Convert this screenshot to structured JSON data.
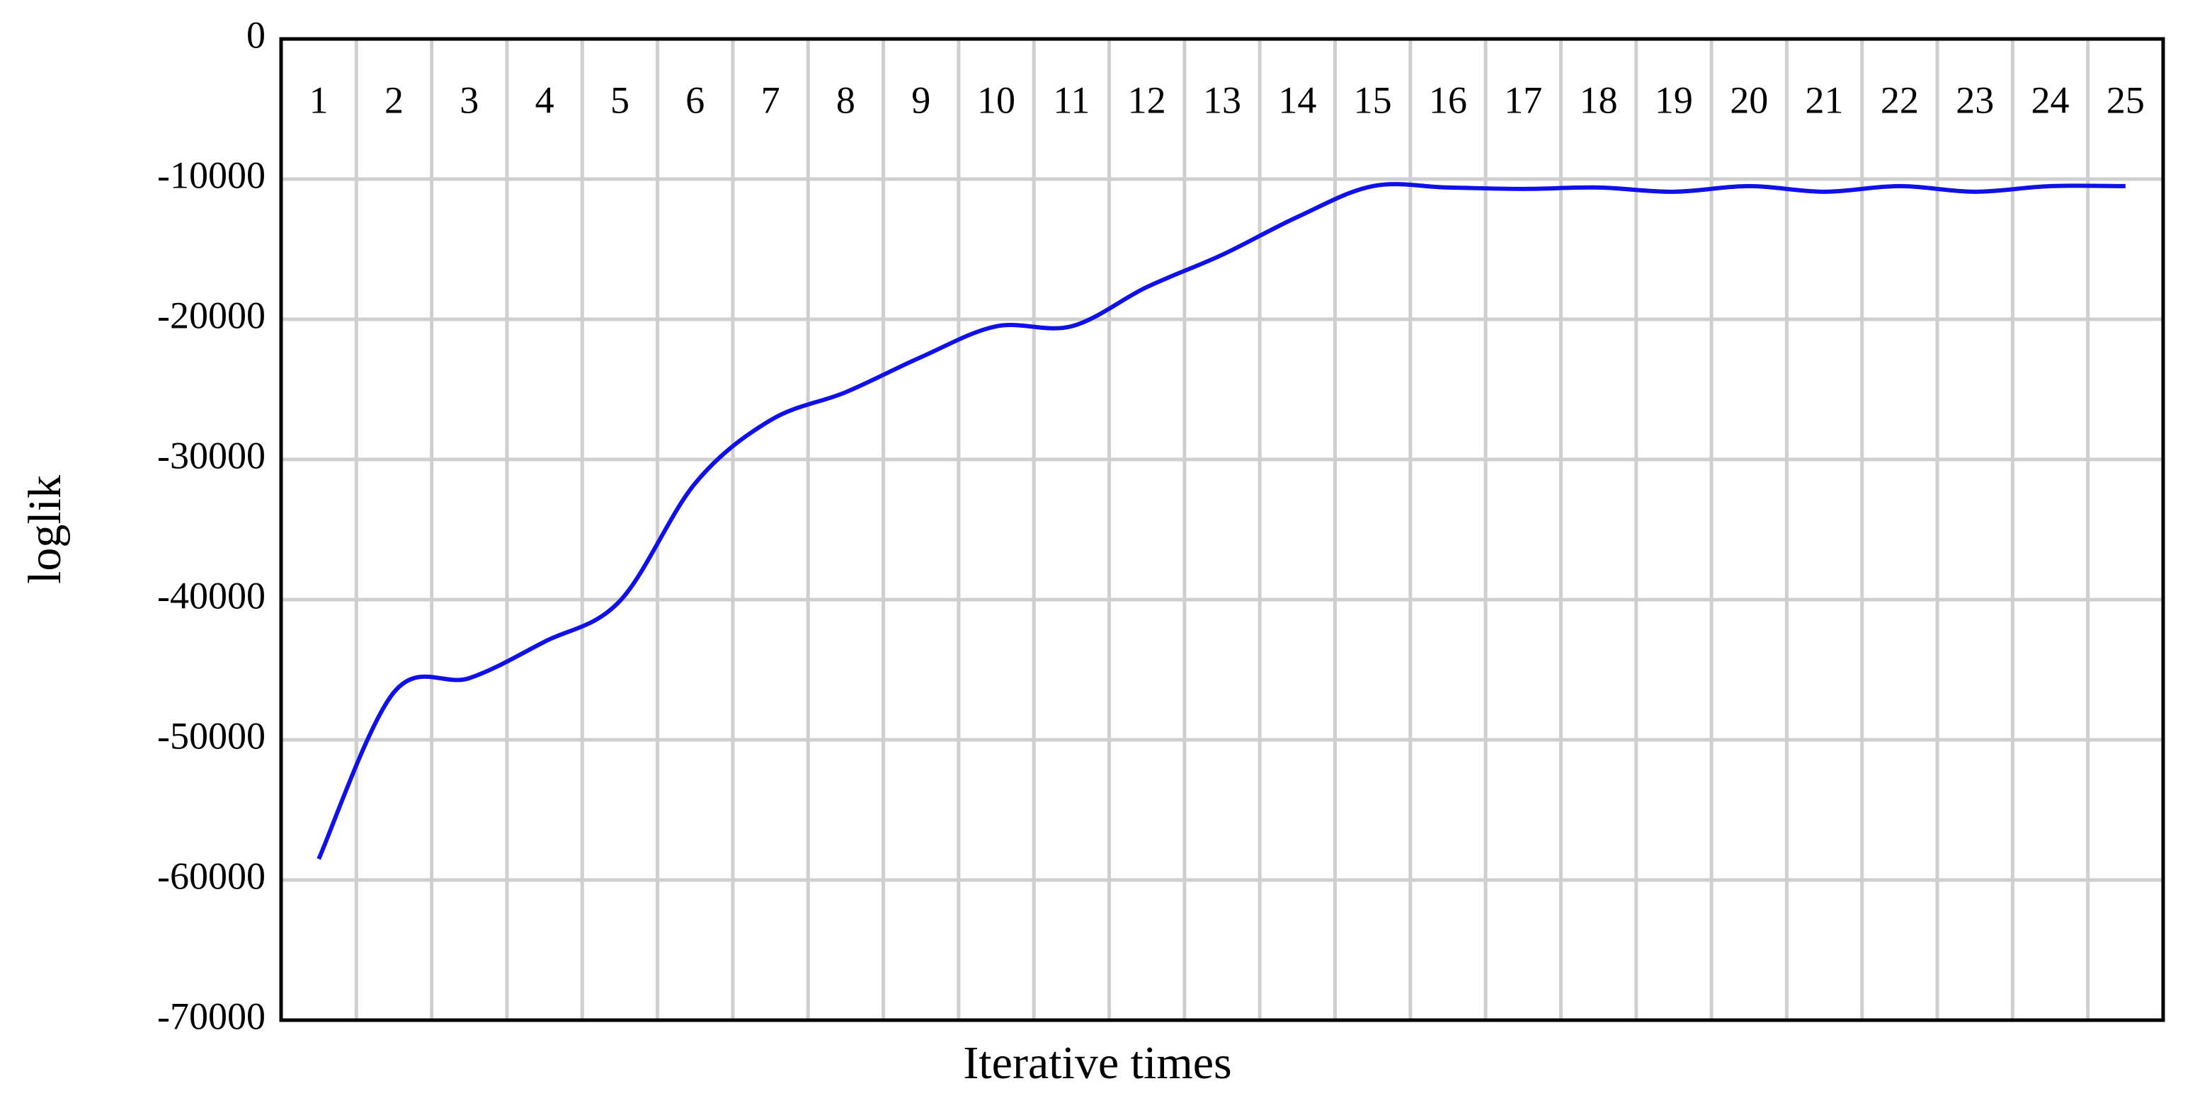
{
  "chart_data": {
    "type": "line",
    "x_label": "Iterative times",
    "y_label": "loglik",
    "categories": [
      "1",
      "2",
      "3",
      "4",
      "5",
      "6",
      "7",
      "8",
      "9",
      "10",
      "11",
      "12",
      "13",
      "14",
      "15",
      "16",
      "17",
      "18",
      "19",
      "20",
      "21",
      "22",
      "23",
      "24",
      "25"
    ],
    "series": [
      {
        "name": "loglik",
        "color": "#1010e8",
        "values": [
          -58500,
          -46600,
          -45600,
          -43000,
          -40100,
          -31700,
          -27200,
          -25200,
          -22700,
          -20500,
          -20500,
          -17700,
          -15400,
          -12700,
          -10500,
          -10600,
          -10700,
          -10600,
          -10900,
          -10500,
          -10900,
          -10500,
          -10900,
          -10500,
          -10500
        ]
      }
    ],
    "ylim": [
      -70000,
      0
    ],
    "yticks": [
      -70000,
      -60000,
      -50000,
      -40000,
      -30000,
      -20000,
      -10000,
      0
    ],
    "grid": true
  }
}
